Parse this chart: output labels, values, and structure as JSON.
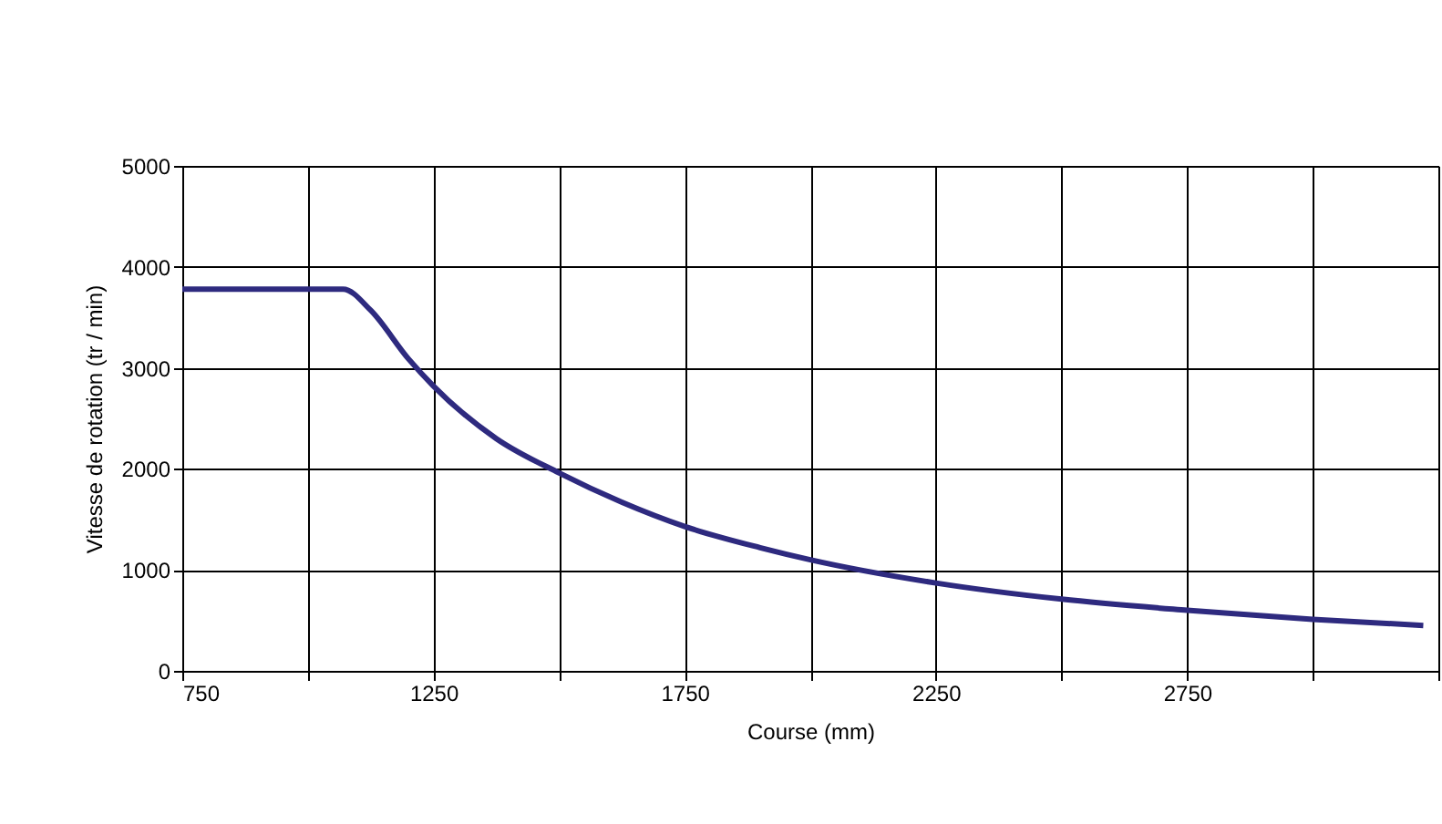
{
  "chart_data": {
    "type": "line",
    "xlabel": "Course (mm)",
    "ylabel": "Vitesse de rotation (tr / min)",
    "x": [
      750,
      1070,
      1125,
      1200,
      1250,
      1375,
      1500,
      1625,
      1750,
      1900,
      2000,
      2250,
      2500,
      2750,
      3000,
      3220
    ],
    "series": [
      {
        "color": "#2e2a7f",
        "values": [
          3780,
          3780,
          3570,
          3090,
          2820,
          2300,
          1960,
          1670,
          1430,
          1220,
          1100,
          870,
          710,
          600,
          510,
          450
        ]
      }
    ],
    "xlim": [
      750,
      3250
    ],
    "xticks": [
      750,
      {
        "value": 1000,
        "label": null
      },
      1250,
      {
        "value": 1500,
        "label": null
      },
      1750,
      {
        "value": 2000,
        "label": null
      },
      2250,
      {
        "value": 2500,
        "label": null
      },
      2750,
      {
        "value": 3000,
        "label": null
      },
      {
        "value": 3250,
        "label": null
      }
    ],
    "ylim": [
      0,
      5000
    ],
    "yticks": [
      0,
      1000,
      2000,
      3000,
      4000,
      5000
    ],
    "grid": true,
    "marker": "none",
    "line_style": "solid"
  }
}
